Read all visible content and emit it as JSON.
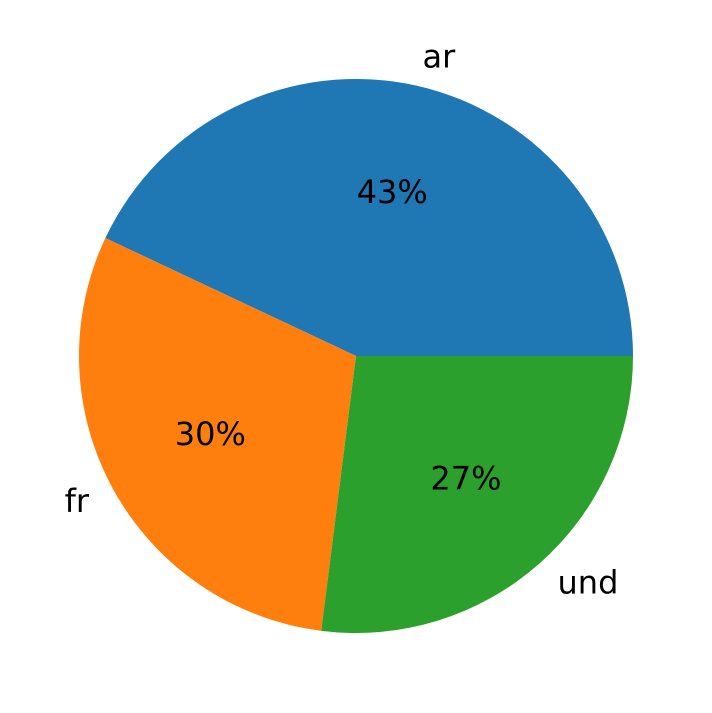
{
  "chart_data": {
    "type": "pie",
    "categories": [
      "ar",
      "fr",
      "und"
    ],
    "values": [
      43,
      30,
      27
    ],
    "value_labels": [
      "43%",
      "30%",
      "27%"
    ],
    "colors": [
      "#1f77b4",
      "#ff7f0e",
      "#2ca02c"
    ]
  }
}
